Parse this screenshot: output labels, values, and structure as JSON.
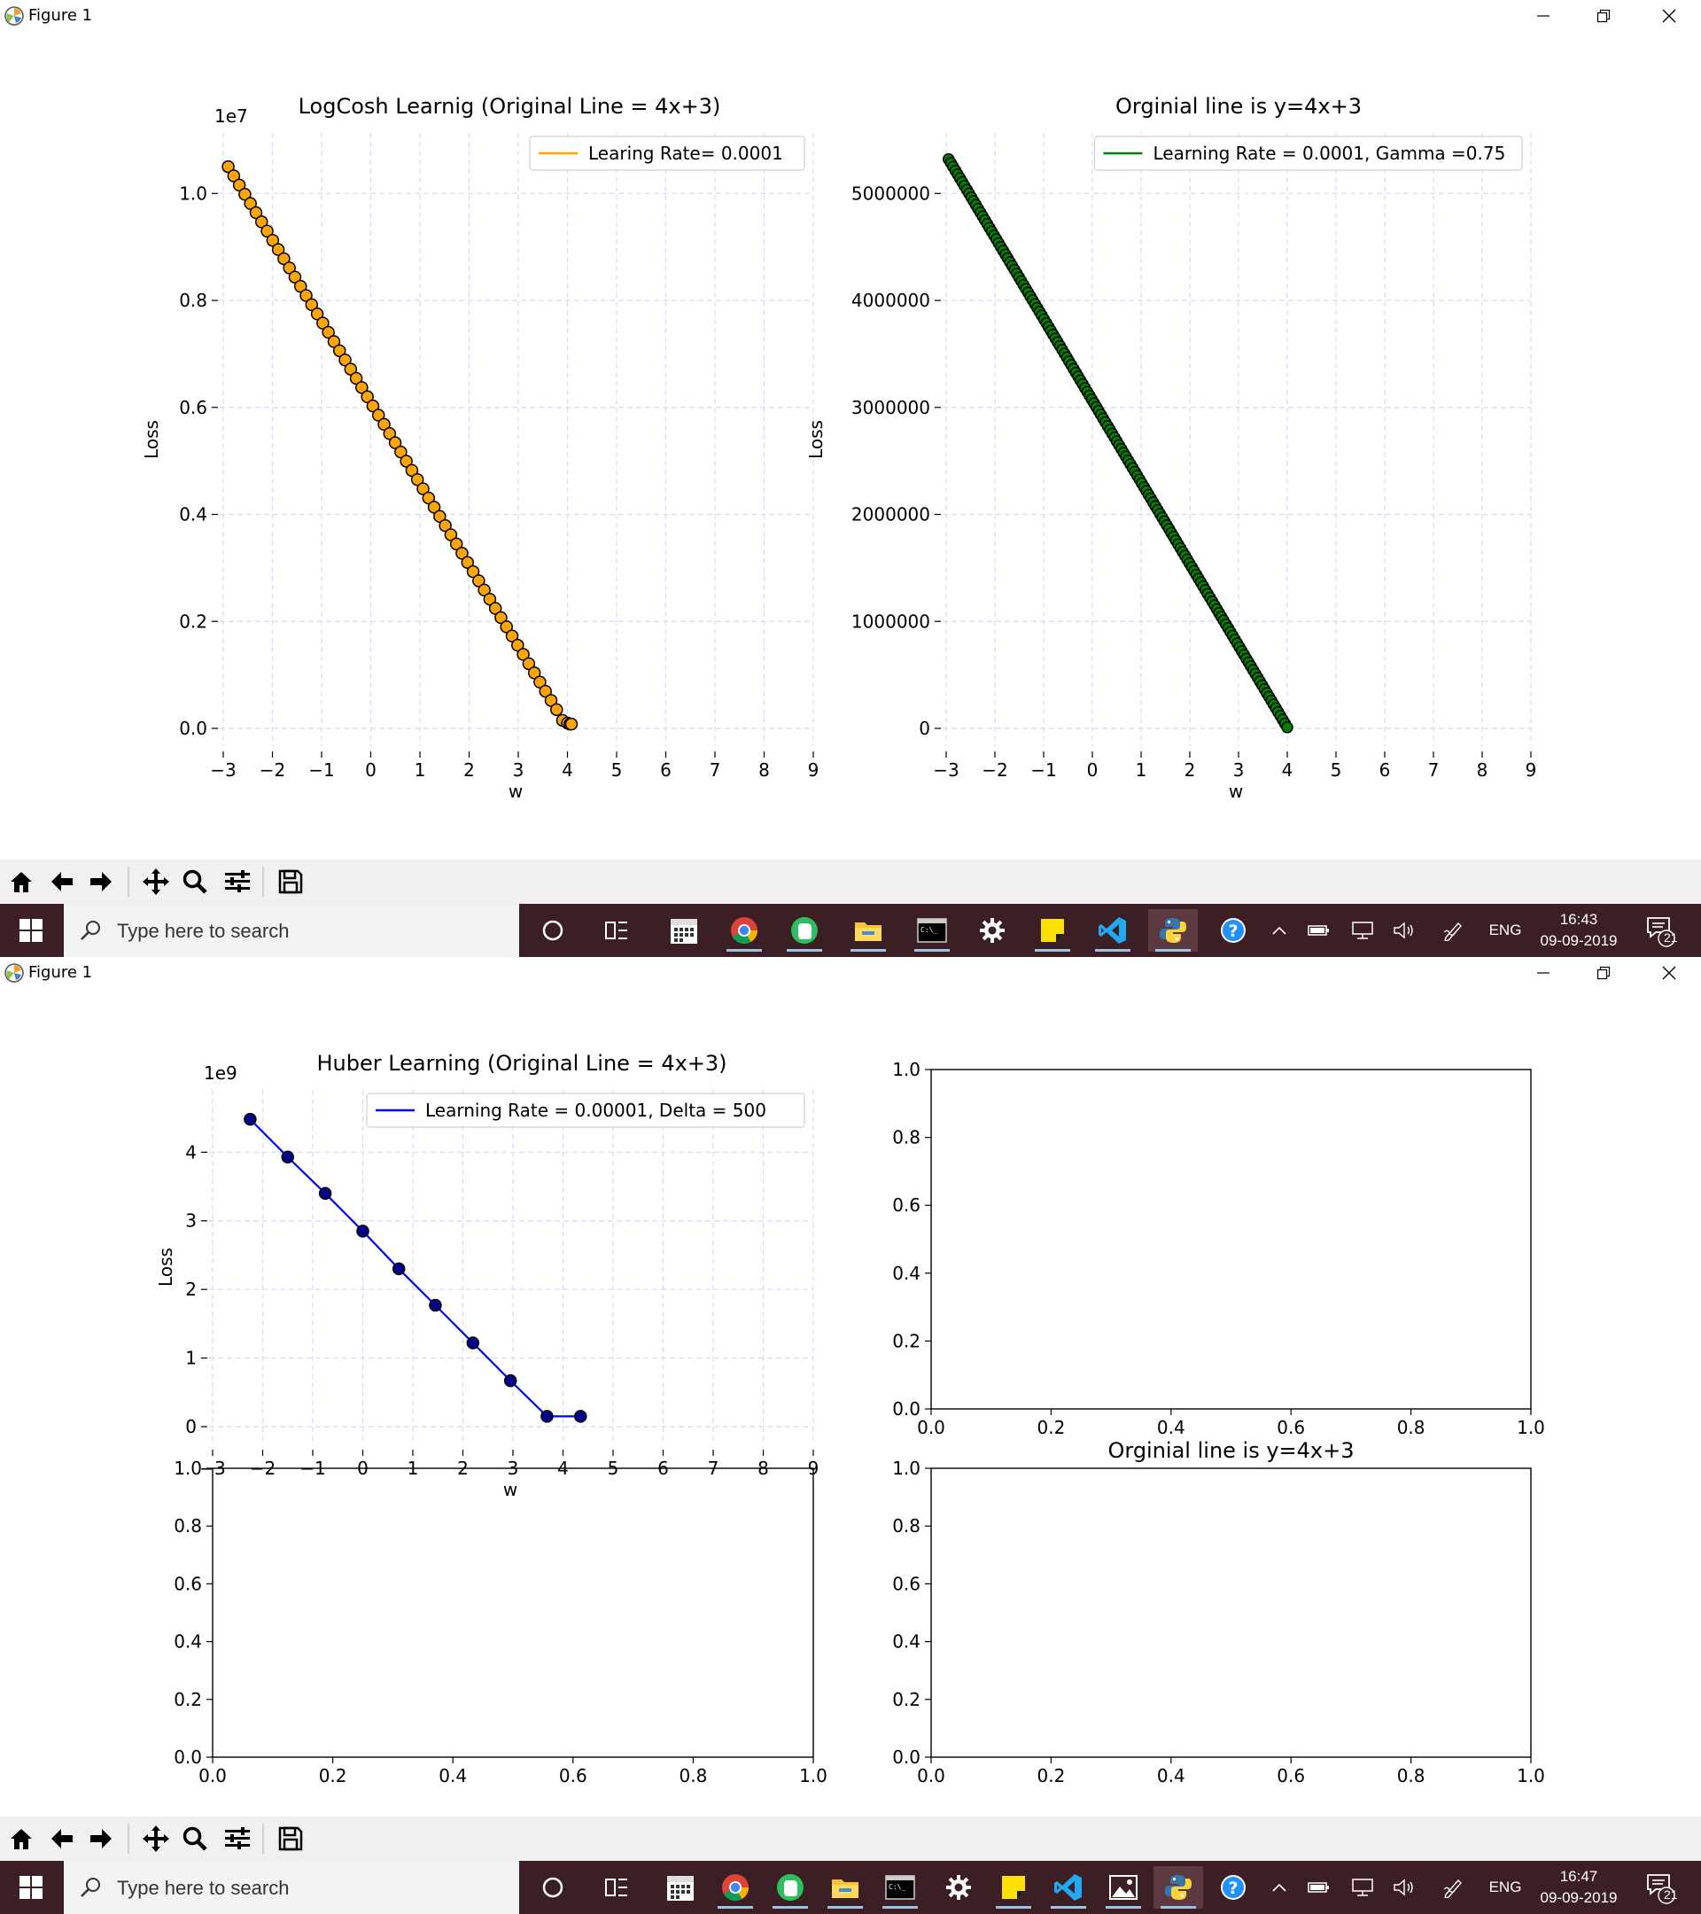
{
  "window_top": {
    "title": "Figure 1"
  },
  "window_bottom": {
    "title": "Figure 1"
  },
  "taskbar_top": {
    "search_placeholder": "Type here to search",
    "lang": "ENG",
    "time": "16:43",
    "date": "09-09-2019",
    "notifications": "21"
  },
  "taskbar_bottom": {
    "search_placeholder": "Type here to search",
    "lang": "ENG",
    "time": "16:47",
    "date": "09-09-2019",
    "notifications": "21"
  },
  "colors": {
    "logcosh": "#ffa500",
    "momentum": "#008000",
    "huber": "#0000ff",
    "grid": "#d8d8ff"
  },
  "icons": {
    "toolbar": [
      "home-icon",
      "back-arrow-icon",
      "forward-arrow-icon",
      "pan-icon",
      "zoom-icon",
      "configure-subplots-icon",
      "save-icon"
    ],
    "taskbar": [
      "cortana-icon",
      "task-view-icon",
      "calendar-icon",
      "chrome-icon",
      "evernote-icon",
      "file-explorer-icon",
      "terminal-icon",
      "settings-icon",
      "sticky-notes-icon",
      "vscode-icon",
      "python-icon",
      "help-icon"
    ]
  },
  "chart_data": [
    {
      "id": "logcosh",
      "type": "scatter",
      "title": "LogCosh Learnig (Original Line = 4x+3)",
      "xlabel": "w",
      "ylabel": "Loss",
      "offset_label": "1e7",
      "xlim": [
        -3,
        9
      ],
      "ylim": [
        0,
        1.08
      ],
      "xticks": [
        -3,
        -2,
        -1,
        0,
        1,
        2,
        3,
        4,
        5,
        6,
        7,
        8,
        9
      ],
      "xtick_labels": [
        "−3",
        "−2",
        "−1",
        "0",
        "1",
        "2",
        "3",
        "4",
        "5",
        "6",
        "7",
        "8",
        "9"
      ],
      "yticks": [
        0,
        0.2,
        0.4,
        0.6,
        0.8,
        1.0
      ],
      "ytick_labels": [
        "0.0",
        "0.2",
        "0.4",
        "0.6",
        "0.8",
        "1.0"
      ],
      "grid": true,
      "legend": "top-right",
      "series": [
        {
          "name": "Learing Rate= 0.0001",
          "color": "#ffa500",
          "x_start": -2.9,
          "y_start": 1.05,
          "x_end": 3.78,
          "y_end": 0.035,
          "n": 60,
          "tail_x": [
            3.9,
            4.0,
            4.05,
            4.08
          ],
          "tail_y": [
            0.015,
            0.01,
            0.008,
            0.008
          ]
        }
      ]
    },
    {
      "id": "momentum",
      "type": "scatter",
      "title": "Orginial line is y=4x+3",
      "xlabel": "w",
      "ylabel": "Loss",
      "xlim": [
        -3,
        9
      ],
      "ylim": [
        0,
        5400000
      ],
      "xticks": [
        -3,
        -2,
        -1,
        0,
        1,
        2,
        3,
        4,
        5,
        6,
        7,
        8,
        9
      ],
      "xtick_labels": [
        "−3",
        "−2",
        "−1",
        "0",
        "1",
        "2",
        "3",
        "4",
        "5",
        "6",
        "7",
        "8",
        "9"
      ],
      "yticks": [
        0,
        1000000,
        2000000,
        3000000,
        4000000,
        5000000
      ],
      "ytick_labels": [
        "0",
        "1000000",
        "2000000",
        "3000000",
        "4000000",
        "5000000"
      ],
      "grid": true,
      "legend": "top-right",
      "series": [
        {
          "name": "Learning Rate = 0.0001, Gamma =0.75",
          "color": "#008000",
          "x_start": -2.95,
          "y_start": 5320000,
          "x_end": 4.0,
          "y_end": 10000,
          "n": 150
        }
      ]
    },
    {
      "id": "huber",
      "type": "line",
      "title": "Huber Learning (Original Line = 4x+3)",
      "xlabel": "w",
      "ylabel": "Loss",
      "offset_label": "1e9",
      "xlim": [
        -3,
        9
      ],
      "ylim": [
        0,
        4.65
      ],
      "xticks": [
        -3,
        -2,
        -1,
        0,
        1,
        2,
        3,
        4,
        5,
        6,
        7,
        8,
        9
      ],
      "xtick_labels": [
        "−3",
        "−2",
        "−1",
        "0",
        "1",
        "2",
        "3",
        "4",
        "5",
        "6",
        "7",
        "8",
        "9"
      ],
      "yticks": [
        0,
        1,
        2,
        3,
        4
      ],
      "ytick_labels": [
        "0",
        "1",
        "2",
        "3",
        "4"
      ],
      "grid": true,
      "legend": "top-right",
      "series": [
        {
          "name": "Learning Rate = 0.00001, Delta = 500",
          "color": "#0000ff",
          "x": [
            -2.25,
            -1.5,
            -0.75,
            0.0,
            0.72,
            1.45,
            2.2,
            2.95,
            3.68,
            4.35
          ],
          "y": [
            4.48,
            3.93,
            3.4,
            2.85,
            2.3,
            1.77,
            1.22,
            0.67,
            0.15,
            0.15
          ]
        }
      ]
    },
    {
      "id": "empty-top-right",
      "type": "scatter",
      "title": "",
      "xlim": [
        0,
        1
      ],
      "ylim": [
        0,
        1
      ],
      "xticks": [
        0,
        0.2,
        0.4,
        0.6,
        0.8,
        1.0
      ],
      "xtick_labels": [
        "0.0",
        "0.2",
        "0.4",
        "0.6",
        "0.8",
        "1.0"
      ],
      "yticks": [
        0,
        0.2,
        0.4,
        0.6,
        0.8,
        1.0
      ],
      "ytick_labels": [
        "0.0",
        "0.2",
        "0.4",
        "0.6",
        "0.8",
        "1.0"
      ],
      "grid": false,
      "series": []
    },
    {
      "id": "empty-bottom-left",
      "type": "scatter",
      "title": "",
      "xlim": [
        0,
        1
      ],
      "ylim": [
        0,
        1
      ],
      "xticks": [
        0,
        0.2,
        0.4,
        0.6,
        0.8,
        1.0
      ],
      "xtick_labels": [
        "0.0",
        "0.2",
        "0.4",
        "0.6",
        "0.8",
        "1.0"
      ],
      "yticks": [
        0,
        0.2,
        0.4,
        0.6,
        0.8,
        1.0
      ],
      "ytick_labels": [
        "0.0",
        "0.2",
        "0.4",
        "0.6",
        "0.8",
        "1.0"
      ],
      "grid": false,
      "series": []
    },
    {
      "id": "empty-bottom-right",
      "type": "scatter",
      "title": "Orginial line is y=4x+3",
      "xlim": [
        0,
        1
      ],
      "ylim": [
        0,
        1
      ],
      "xticks": [
        0,
        0.2,
        0.4,
        0.6,
        0.8,
        1.0
      ],
      "xtick_labels": [
        "0.0",
        "0.2",
        "0.4",
        "0.6",
        "0.8",
        "1.0"
      ],
      "yticks": [
        0,
        0.2,
        0.4,
        0.6,
        0.8,
        1.0
      ],
      "ytick_labels": [
        "0.0",
        "0.2",
        "0.4",
        "0.6",
        "0.8",
        "1.0"
      ],
      "grid": false,
      "series": []
    }
  ]
}
